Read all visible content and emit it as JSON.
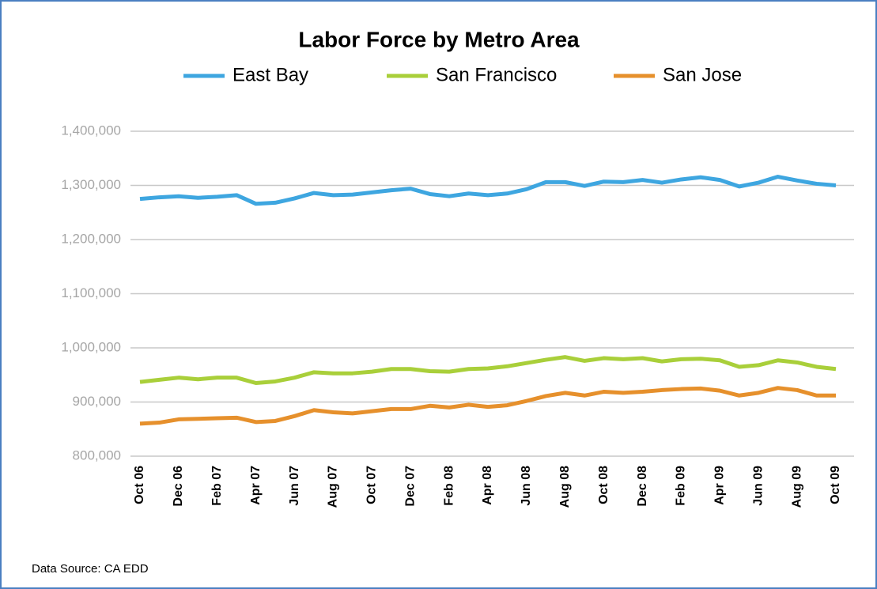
{
  "chart_data": {
    "type": "line",
    "title": "Labor Force by Metro Area",
    "footer": "Data Source: CA EDD",
    "categories": [
      "Oct 06",
      null,
      "Dec 06",
      null,
      "Feb 07",
      null,
      "Apr 07",
      null,
      "Jun 07",
      null,
      "Aug 07",
      null,
      "Oct 07",
      null,
      "Dec 07",
      null,
      "Feb 08",
      null,
      "Apr 08",
      null,
      "Jun 08",
      null,
      "Aug 08",
      null,
      "Oct 08",
      null,
      "Dec 08",
      null,
      "Feb 09",
      null,
      "Apr 09",
      null,
      "Jun 09",
      null,
      "Aug 09",
      null,
      "Oct 09"
    ],
    "series": [
      {
        "name": "East Bay",
        "color": "#3ea6e0",
        "values": [
          1275000,
          1278000,
          1280000,
          1277000,
          1279000,
          1282000,
          1266000,
          1268000,
          1276000,
          1286000,
          1282000,
          1283000,
          1287000,
          1291000,
          1294000,
          1284000,
          1280000,
          1285000,
          1282000,
          1285000,
          1293000,
          1306000,
          1306000,
          1299000,
          1307000,
          1306000,
          1310000,
          1305000,
          1311000,
          1315000,
          1310000,
          1298000,
          1305000,
          1316000,
          1309000,
          1303000,
          1300000
        ]
      },
      {
        "name": "San Francisco",
        "color": "#a9cf3a",
        "values": [
          937000,
          941000,
          945000,
          942000,
          945000,
          945000,
          935000,
          938000,
          945000,
          955000,
          953000,
          953000,
          956000,
          961000,
          961000,
          957000,
          956000,
          961000,
          962000,
          966000,
          972000,
          978000,
          983000,
          976000,
          981000,
          979000,
          981000,
          975000,
          979000,
          980000,
          977000,
          965000,
          968000,
          977000,
          973000,
          965000,
          961000
        ]
      },
      {
        "name": "San Jose",
        "color": "#e6902c",
        "values": [
          860000,
          862000,
          868000,
          869000,
          870000,
          871000,
          863000,
          865000,
          874000,
          885000,
          881000,
          879000,
          883000,
          887000,
          887000,
          893000,
          890000,
          895000,
          891000,
          894000,
          902000,
          911000,
          917000,
          912000,
          919000,
          917000,
          919000,
          922000,
          924000,
          925000,
          921000,
          912000,
          917000,
          926000,
          922000,
          912000,
          912000
        ]
      }
    ],
    "ylim": [
      800000,
      1400000
    ],
    "yticks": [
      {
        "value": 800000,
        "label": "800,000"
      },
      {
        "value": 900000,
        "label": "900,000"
      },
      {
        "value": 1000000,
        "label": "1,000,000"
      },
      {
        "value": 1100000,
        "label": "1,100,000"
      },
      {
        "value": 1200000,
        "label": "1,200,000"
      },
      {
        "value": 1300000,
        "label": "1,300,000"
      },
      {
        "value": 1400000,
        "label": "1,400,000"
      }
    ],
    "grid": true
  }
}
